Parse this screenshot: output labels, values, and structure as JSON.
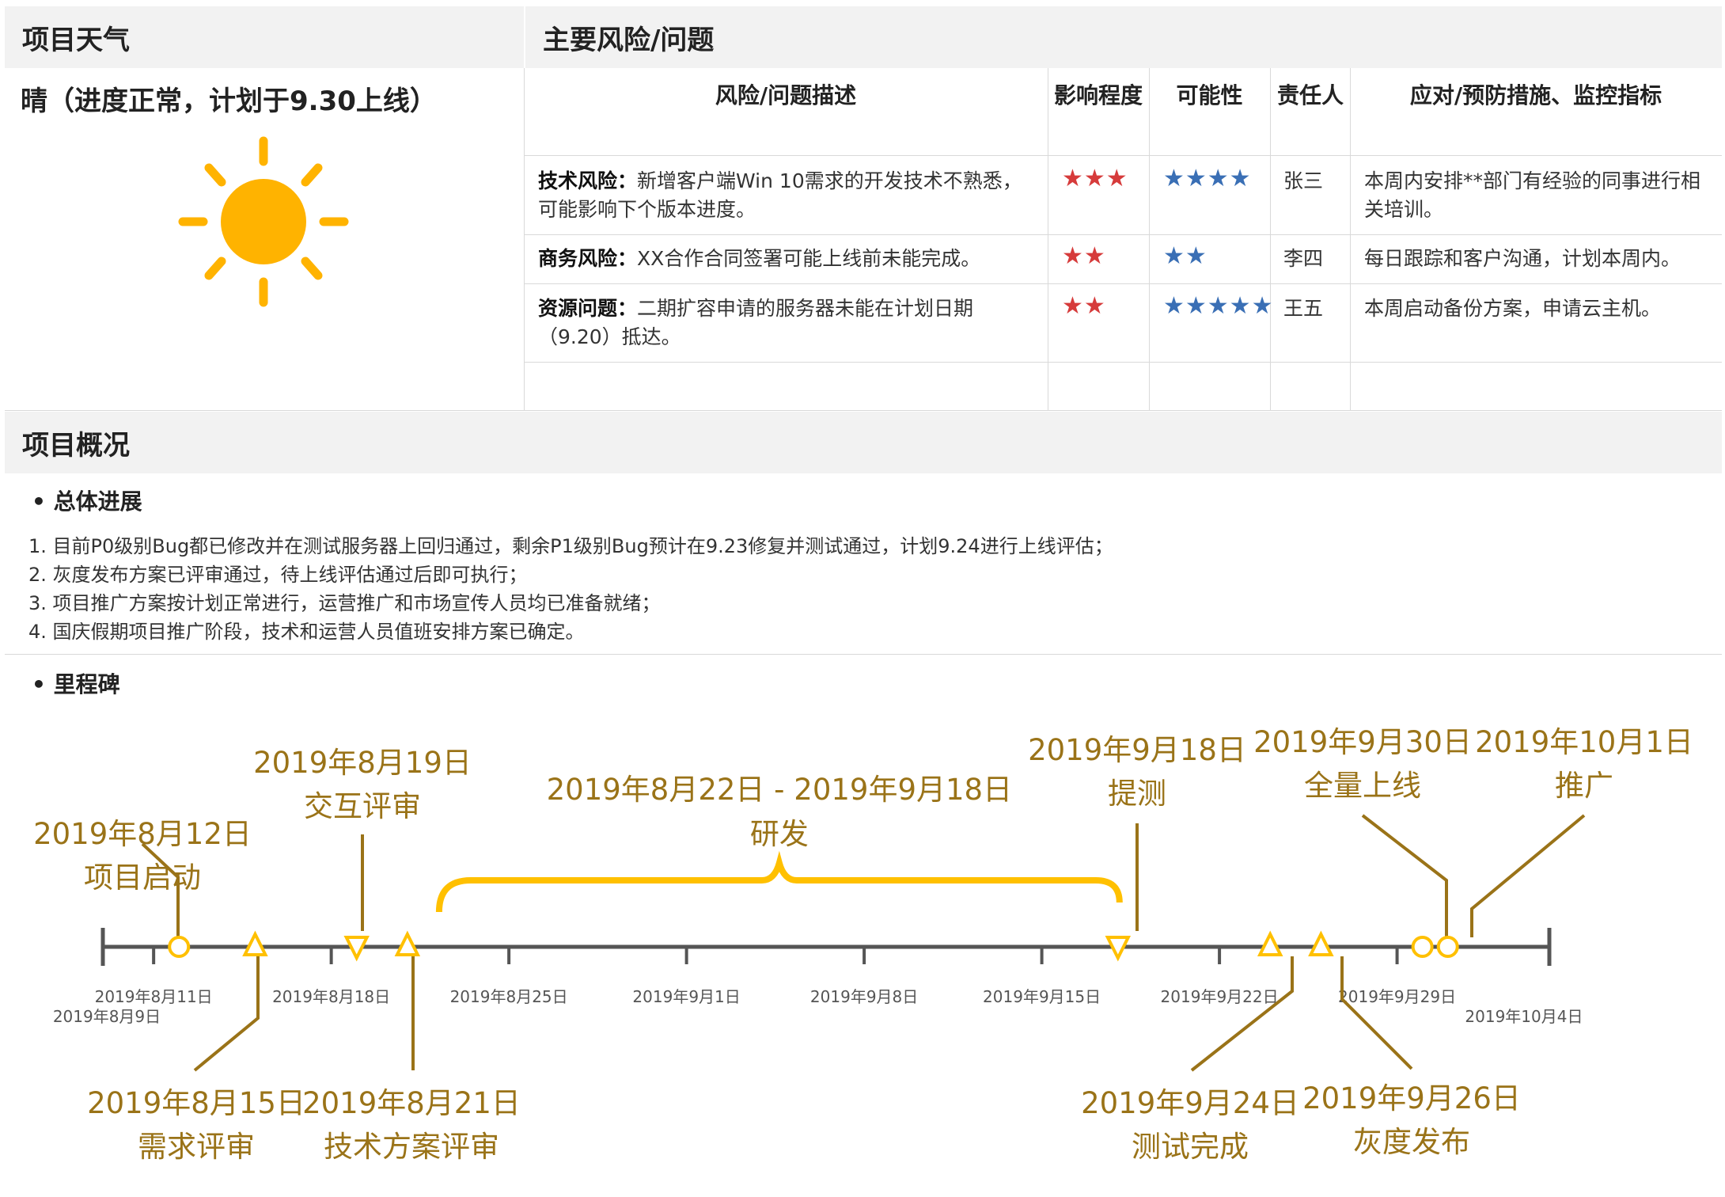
{
  "weather": {
    "header": "项目天气",
    "status": "晴（进度正常，计划于9.30上线）",
    "icon": "sun-icon",
    "color": "#ffb300"
  },
  "risks": {
    "header": "主要风险/问题",
    "columns": [
      "风险/问题描述",
      "影响程度",
      "可能性",
      "责任人",
      "应对/预防措施、监控指标"
    ],
    "rows": [
      {
        "type": "技术风险：",
        "desc": "新增客户端Win 10需求的开发技术不熟悉，可能影响下个版本进度。",
        "impact": 3,
        "probability": 4,
        "owner": "张三",
        "measure": "本周内安排**部门有经验的同事进行相关培训。"
      },
      {
        "type": "商务风险：",
        "desc": "XX合作合同签署可能上线前未能完成。",
        "impact": 2,
        "probability": 2,
        "owner": "李四",
        "measure": "每日跟踪和客户沟通，计划本周内。"
      },
      {
        "type": "资源问题：",
        "desc": "二期扩容申请的服务器未能在计划日期（9.20）抵达。",
        "impact": 2,
        "probability": 5,
        "owner": "王五",
        "measure": "本周启动备份方案，申请云主机。"
      }
    ],
    "impact_color": "#d63b3b",
    "probability_color": "#3a6fb5"
  },
  "overview": {
    "header": "项目概况",
    "progress_title": "总体进展",
    "progress_items": [
      "1. 目前P0级别Bug都已修改并在测试服务器上回归通过，剩余P1级别Bug预计在9.23修复并测试通过，计划9.24进行上线评估；",
      "2. 灰度发布方案已评审通过，待上线评估通过后即可执行；",
      "3. 项目推广方案按计划正常进行，运营推广和市场宣传人员均已准备就绪；",
      "4. 国庆假期项目推广阶段，技术和运营人员值班安排方案已确定。"
    ],
    "milestone_title": "里程碑"
  },
  "timeline": {
    "ticks": [
      {
        "day": 0,
        "label": "2019年8月9日"
      },
      {
        "day": 2,
        "label": "2019年8月11日"
      },
      {
        "day": 9,
        "label": "2019年8月18日"
      },
      {
        "day": 16,
        "label": "2019年8月25日"
      },
      {
        "day": 23,
        "label": "2019年9月1日"
      },
      {
        "day": 30,
        "label": "2019年9月8日"
      },
      {
        "day": 37,
        "label": "2019年9月15日"
      },
      {
        "day": 44,
        "label": "2019年9月22日"
      },
      {
        "day": 51,
        "label": "2019年9月29日"
      },
      {
        "day": 56,
        "label": "2019年10月4日"
      }
    ],
    "milestones": [
      {
        "day": 3,
        "date": "2019年8月12日",
        "name": "项目启动",
        "marker": "circle",
        "side": "above"
      },
      {
        "day": 6,
        "date": "2019年8月15日",
        "name": "需求评审",
        "marker": "triangle-up",
        "side": "below"
      },
      {
        "day": 10,
        "date": "2019年8月19日",
        "name": "交互评审",
        "marker": "triangle-down",
        "side": "above"
      },
      {
        "day": 12,
        "date": "2019年8月21日",
        "name": "技术方案评审",
        "marker": "triangle-up",
        "side": "below"
      },
      {
        "day": 40,
        "date": "2019年9月18日",
        "name": "提测",
        "marker": "triangle-down",
        "side": "above"
      },
      {
        "day": 46,
        "date": "2019年9月24日",
        "name": "测试完成",
        "marker": "triangle-up",
        "side": "below"
      },
      {
        "day": 48,
        "date": "2019年9月26日",
        "name": "灰度发布",
        "marker": "triangle-up",
        "side": "below"
      },
      {
        "day": 52,
        "date": "2019年9月30日",
        "name": "全量上线",
        "marker": "circle",
        "side": "above"
      },
      {
        "day": 53,
        "date": "2019年10月1日",
        "name": "推广",
        "marker": "circle",
        "side": "above"
      }
    ],
    "span": {
      "start_day": 13,
      "end_day": 40,
      "date": "2019年8月22日 - 2019年9月18日",
      "name": "研发"
    },
    "axis_color": "#555555",
    "marker_color": "#ffc000",
    "label_color": "#9a7318"
  }
}
